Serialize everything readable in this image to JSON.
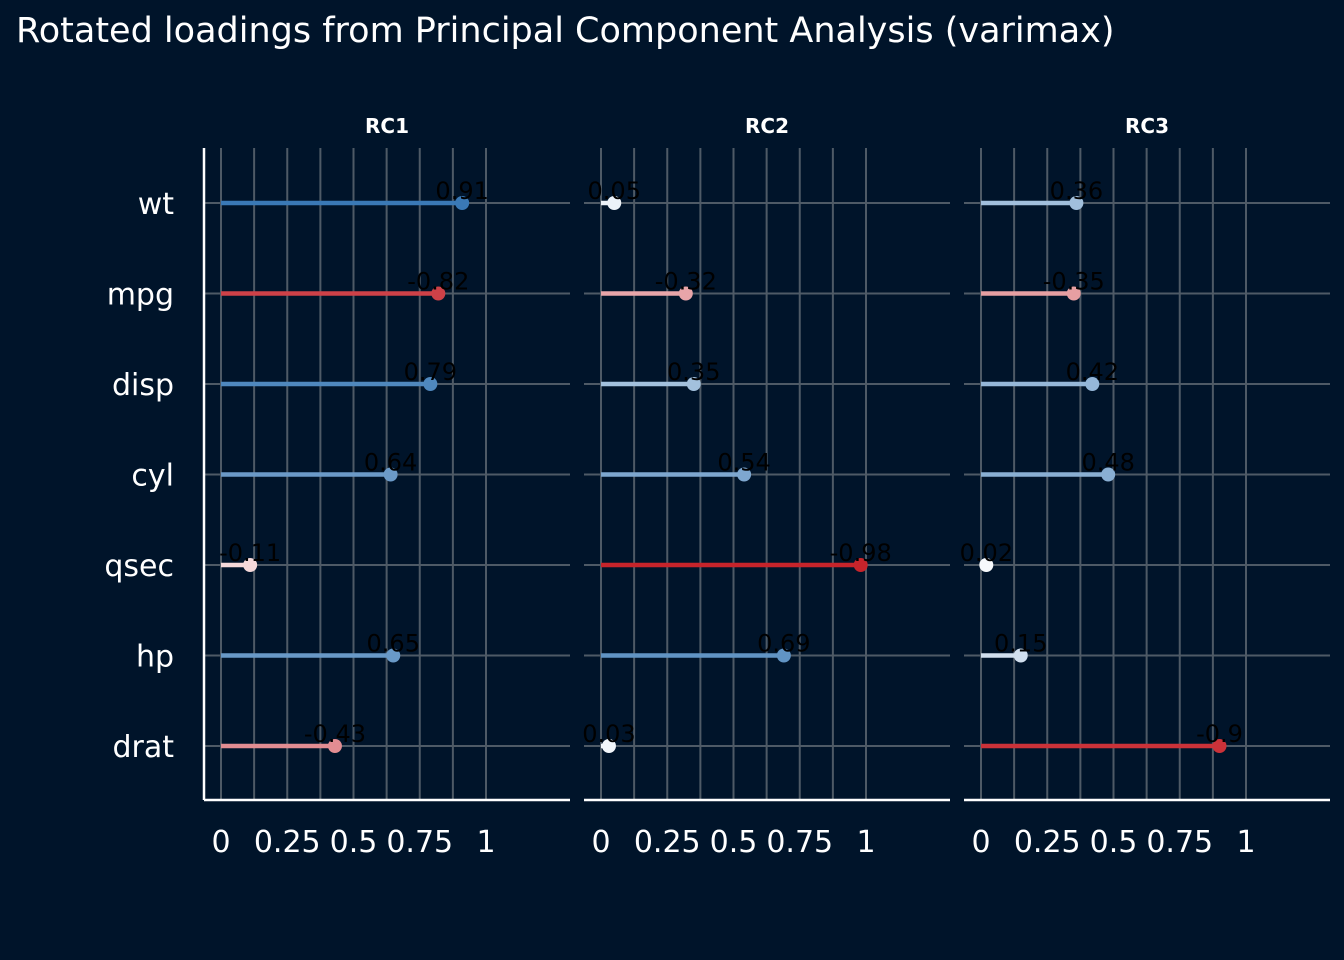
{
  "chart_data": {
    "type": "lollipop",
    "title": "Rotated loadings from Principal Component Analysis (varimax)",
    "xlabel": "",
    "ylabel": "",
    "variables": [
      "wt",
      "mpg",
      "disp",
      "cyl",
      "qsec",
      "hp",
      "drat"
    ],
    "panels": [
      {
        "name": "RC1",
        "loadings": [
          0.91,
          -0.82,
          0.79,
          0.64,
          -0.11,
          0.65,
          -0.43
        ],
        "labels": [
          "0.91",
          "-0.82",
          "0.79",
          "0.64",
          "-0.11",
          "0.65",
          "-0.43"
        ]
      },
      {
        "name": "RC2",
        "loadings": [
          0.05,
          -0.32,
          0.35,
          0.54,
          -0.98,
          0.69,
          0.03
        ],
        "labels": [
          "0.05",
          "-0.32",
          "0.35",
          "0.54",
          "-0.98",
          "0.69",
          "0.03"
        ]
      },
      {
        "name": "RC3",
        "loadings": [
          0.36,
          -0.35,
          0.42,
          0.48,
          0.02,
          0.15,
          -0.9
        ],
        "labels": [
          "0.36",
          "-0.35",
          "0.42",
          "0.48",
          "0.02",
          "0.15",
          "-0.9"
        ]
      }
    ],
    "x_plotted": "absolute value of loading",
    "xlim": [
      0,
      1
    ],
    "xticks": [
      0,
      0.25,
      0.5,
      0.75,
      1
    ],
    "xtick_labels": [
      "0",
      "0.25",
      "0.5",
      "0.75",
      "1"
    ],
    "color_scale": {
      "negative": "#c62028",
      "zero": "#ffffff",
      "positive": "#2b6fb0",
      "limits": [
        -1,
        1
      ]
    },
    "colors": {
      "background": "#00142a",
      "grid": "#4e5a66",
      "axis": "#ffffff"
    },
    "grid": true,
    "legend": "none"
  }
}
